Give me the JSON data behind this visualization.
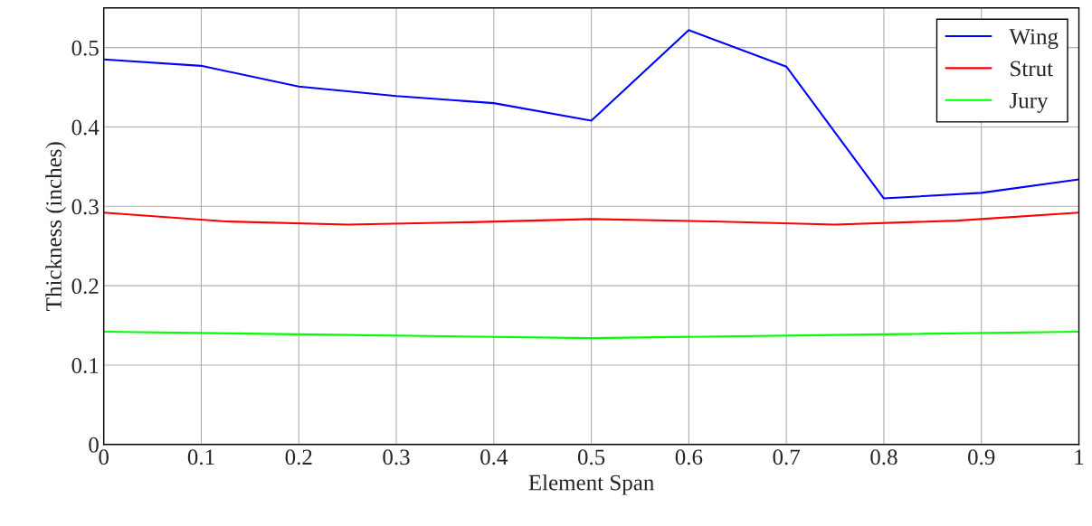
{
  "chart_data": {
    "type": "line",
    "xlabel": "Element Span",
    "ylabel": "Thickness (inches)",
    "xlim": [
      0,
      1
    ],
    "xticks": [
      0,
      0.1,
      0.2,
      0.3,
      0.4,
      0.5,
      0.6,
      0.7,
      0.8,
      0.9,
      1
    ],
    "ylim": [
      0,
      0.55
    ],
    "yticks": [
      0,
      0.1,
      0.2,
      0.3,
      0.4,
      0.5
    ],
    "grid": true,
    "legend": "top right",
    "marker": "none",
    "line_style": "solid",
    "series": [
      {
        "name": "Wing",
        "color": "#0000ff",
        "x": [
          0,
          0.1,
          0.2,
          0.3,
          0.4,
          0.5,
          0.6,
          0.7,
          0.8,
          0.9,
          1
        ],
        "values": [
          0.485,
          0.477,
          0.451,
          0.439,
          0.43,
          0.408,
          0.522,
          0.476,
          0.31,
          0.317,
          0.334
        ]
      },
      {
        "name": "Strut",
        "color": "#ff0000",
        "x": [
          0,
          0.125,
          0.25,
          0.375,
          0.5,
          0.625,
          0.75,
          0.875,
          1
        ],
        "values": [
          0.292,
          0.281,
          0.277,
          0.28,
          0.284,
          0.281,
          0.277,
          0.282,
          0.292
        ]
      },
      {
        "name": "Jury",
        "color": "#00ff00",
        "x": [
          0,
          0.25,
          0.5,
          0.75,
          1
        ],
        "values": [
          0.142,
          0.138,
          0.134,
          0.138,
          0.142
        ]
      }
    ]
  }
}
